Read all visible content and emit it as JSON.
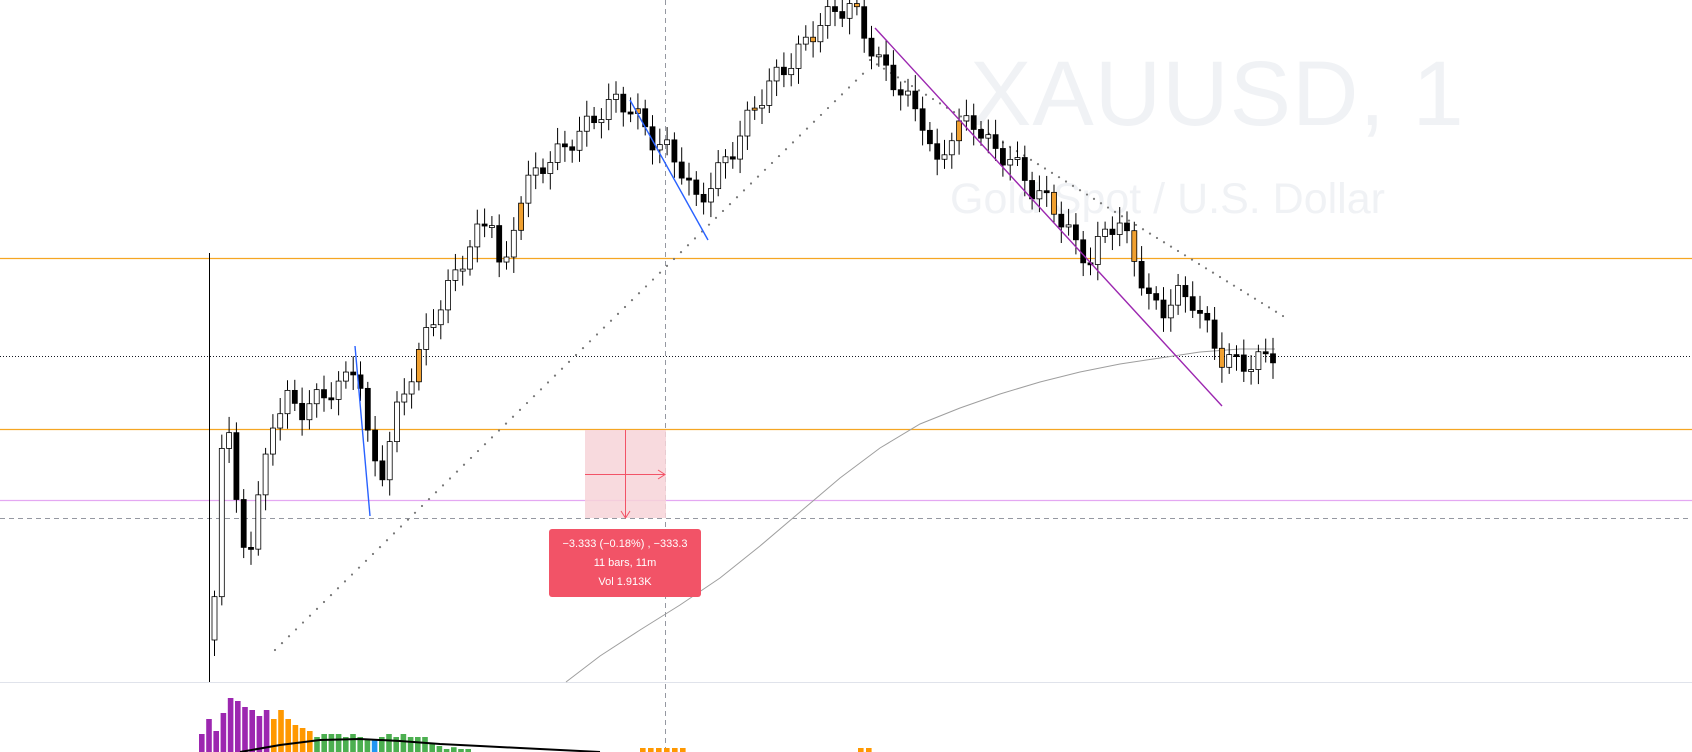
{
  "watermark": {
    "symbol": "XAUUSD, 1",
    "description": "Gold Spot / U.S. Dollar"
  },
  "measure_tooltip": {
    "change": "−3.333 (−0.18%) , −333.3",
    "bars": "11 bars, 11m",
    "volume": "Vol 1.913K"
  },
  "colors": {
    "candle_up_body": "#ffffff",
    "candle_down_body": "#000000",
    "candle_highlight": "#f0a030",
    "horizontal_line_orange": "#f5a623",
    "horizontal_line_violet": "#e0a0f0",
    "trendline_blue": "#2962ff",
    "trendline_purple": "#9c27b0",
    "measure_fill": "#f7d3d8",
    "measure_text_bg": "#f25367",
    "volume_purple": "#9c27b0",
    "volume_orange": "#ff9800",
    "volume_green": "#4caf50"
  },
  "chart_data": {
    "type": "candlestick",
    "symbol": "XAUUSD",
    "timeframe": "1",
    "candles_approx": [
      {
        "o": 1,
        "h": 1,
        "l": 1,
        "c": 1
      }
    ],
    "volume_bars": [
      {
        "v": 0.3,
        "color": "purple"
      },
      {
        "v": 0.55,
        "color": "purple"
      },
      {
        "v": 0.35,
        "color": "purple"
      },
      {
        "v": 0.65,
        "color": "purple"
      },
      {
        "v": 0.9,
        "color": "purple"
      },
      {
        "v": 0.85,
        "color": "purple"
      },
      {
        "v": 0.75,
        "color": "purple"
      },
      {
        "v": 0.7,
        "color": "purple"
      },
      {
        "v": 0.6,
        "color": "purple"
      },
      {
        "v": 0.7,
        "color": "purple"
      },
      {
        "v": 0.55,
        "color": "orange"
      },
      {
        "v": 0.7,
        "color": "orange"
      },
      {
        "v": 0.55,
        "color": "orange"
      },
      {
        "v": 0.45,
        "color": "orange"
      },
      {
        "v": 0.4,
        "color": "orange"
      },
      {
        "v": 0.35,
        "color": "orange"
      },
      {
        "v": 0.25,
        "color": "green"
      },
      {
        "v": 0.3,
        "color": "green"
      },
      {
        "v": 0.3,
        "color": "green"
      },
      {
        "v": 0.3,
        "color": "green"
      },
      {
        "v": 0.25,
        "color": "green"
      },
      {
        "v": 0.3,
        "color": "green"
      },
      {
        "v": 0.25,
        "color": "green"
      },
      {
        "v": 0.2,
        "color": "green"
      },
      {
        "v": 0.2,
        "color": "blue"
      },
      {
        "v": 0.25,
        "color": "green"
      },
      {
        "v": 0.3,
        "color": "green"
      },
      {
        "v": 0.25,
        "color": "green"
      },
      {
        "v": 0.3,
        "color": "green"
      },
      {
        "v": 0.25,
        "color": "green"
      },
      {
        "v": 0.25,
        "color": "green"
      },
      {
        "v": 0.25,
        "color": "green"
      },
      {
        "v": 0.15,
        "color": "green"
      },
      {
        "v": 0.1,
        "color": "green"
      },
      {
        "v": 0.05,
        "color": "green"
      },
      {
        "v": 0.08,
        "color": "green"
      },
      {
        "v": 0.05,
        "color": "green"
      },
      {
        "v": 0.05,
        "color": "green"
      }
    ]
  }
}
